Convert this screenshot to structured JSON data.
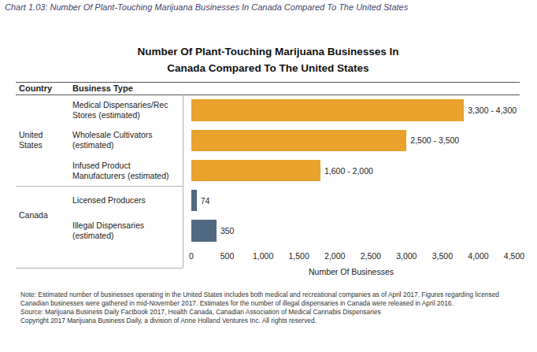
{
  "chart_data": {
    "type": "bar",
    "orientation": "horizontal",
    "caption": "Chart 1.03: Number Of Plant-Touching Marijuana Businesses In Canada Compared To The United States",
    "title": "Number Of Plant-Touching Marijuana Businesses In Canada Compared To The United States",
    "column_headers": [
      "Country",
      "Business Type"
    ],
    "groups": [
      "United States",
      "United States",
      "United States",
      "Canada",
      "Canada"
    ],
    "categories": [
      "Medical Dispensaries/Rec Stores (estimated)",
      "Wholesale Cultivators (estimated)",
      "Infused Product Manufacturers (estimated)",
      "Licensed Producers",
      "Illegal Dispensaries (estimated)"
    ],
    "values": [
      3800,
      3000,
      1800,
      74,
      350
    ],
    "value_labels": [
      "3,300 - 4,300",
      "2,500 - 3,500",
      "1,600 - 2,000",
      "74",
      "350"
    ],
    "data_labels": true,
    "colors": [
      "#e9a22c",
      "#e9a22c",
      "#e9a22c",
      "#4f6a80",
      "#4f6a80"
    ],
    "xlabel": "Number Of Businesses",
    "xlim": [
      0,
      4500
    ],
    "xticks": [
      0,
      500,
      {
        "value": 1000,
        "label": "1,000"
      },
      {
        "value": 1500,
        "label": "1,500"
      },
      {
        "value": 2000,
        "label": "2,000"
      },
      {
        "value": 2500,
        "label": "2,500"
      },
      {
        "value": 3000,
        "label": "3,000"
      },
      {
        "value": 3500,
        "label": "3,500"
      },
      {
        "value": 4000,
        "label": "4,000"
      },
      {
        "value": 4500,
        "label": "4,500"
      }
    ],
    "grid": false,
    "notes": [
      "Note: Estimated number of businesses operating in the United States includes both medical and recreational companies as of April 2017. Figures regarding licensed Canadian businesses were gathered in mid-November 2017. Estimates for the number of illegal dispensaries in Canada were released in April 2016.",
      "Source: Marijuana Business Daily Factbook 2017, Health Canada, Canadian Association of Medical Cannabis Dispensaries",
      "Copyright 2017 Marijuana Business Daily, a division of Anne Holland Ventures Inc. All rights reserved."
    ]
  }
}
